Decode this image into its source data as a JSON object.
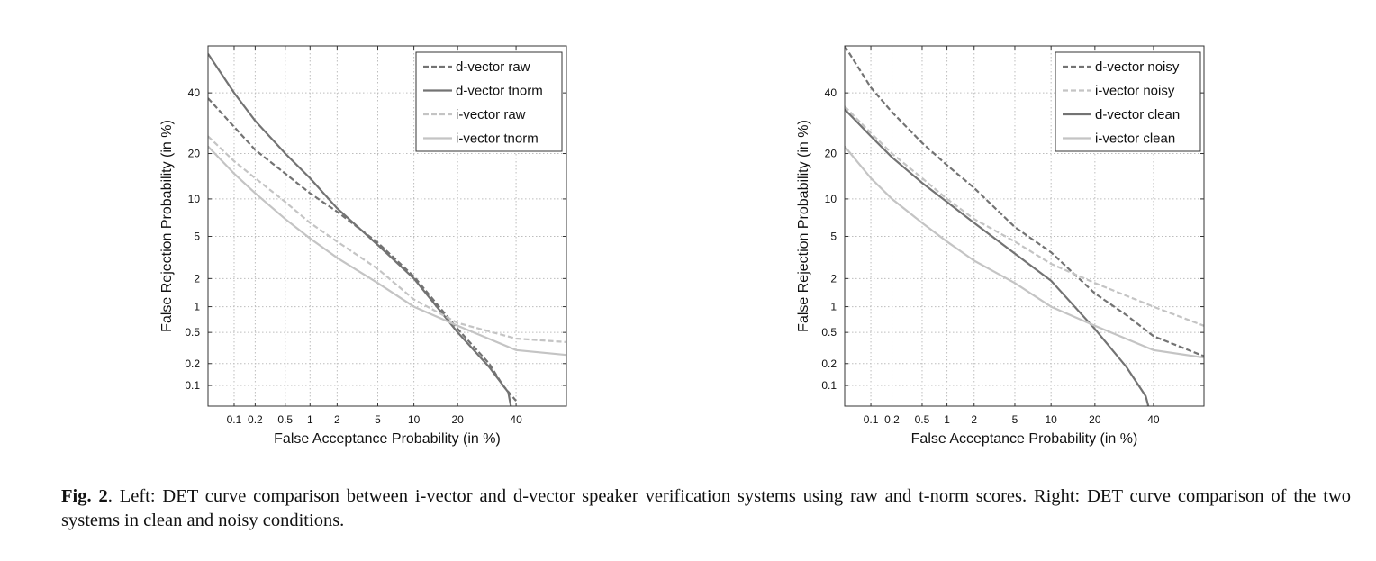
{
  "caption": {
    "label": "Fig. 2",
    "text": ". Left: DET curve comparison between i-vector and d-vector speaker verification systems using raw and t-norm scores. Right: DET curve comparison of the two systems in clean and noisy conditions."
  },
  "chart_data": [
    {
      "type": "line",
      "title": "",
      "xlabel": "False Acceptance Probability (in %)",
      "ylabel": "False Rejection Probability (in %)",
      "x_scale": "probit",
      "y_scale": "probit",
      "xlim": [
        0.04,
        60
      ],
      "ylim": [
        0.05,
        58
      ],
      "x_ticks": [
        0.1,
        0.2,
        0.5,
        1,
        2,
        5,
        10,
        20,
        40
      ],
      "y_ticks": [
        0.1,
        0.2,
        0.5,
        1,
        2,
        5,
        10,
        20,
        40
      ],
      "grid": true,
      "legend": "top-right",
      "series": [
        {
          "name": "d-vector raw",
          "color": "#737373",
          "dash": "dashed",
          "points": [
            [
              0.04,
              38
            ],
            [
              0.1,
              28
            ],
            [
              0.2,
              21
            ],
            [
              0.5,
              15
            ],
            [
              1,
              11
            ],
            [
              2,
              8
            ],
            [
              5,
              4.4
            ],
            [
              10,
              2.1
            ],
            [
              20,
              0.55
            ],
            [
              30,
              0.2
            ],
            [
              35,
              0.1
            ],
            [
              40,
              0.06
            ]
          ]
        },
        {
          "name": "d-vector tnorm",
          "color": "#737373",
          "dash": "solid",
          "points": [
            [
              0.04,
              55
            ],
            [
              0.1,
              40
            ],
            [
              0.2,
              30
            ],
            [
              0.5,
              20
            ],
            [
              1,
              14
            ],
            [
              2,
              8.5
            ],
            [
              5,
              4.2
            ],
            [
              10,
              2.0
            ],
            [
              20,
              0.5
            ],
            [
              30,
              0.18
            ],
            [
              37,
              0.08
            ],
            [
              38,
              0.05
            ]
          ]
        },
        {
          "name": "i-vector raw",
          "color": "#c4c4c4",
          "dash": "dashed",
          "points": [
            [
              0.04,
              25
            ],
            [
              0.1,
              18
            ],
            [
              0.2,
              14
            ],
            [
              0.5,
              9.5
            ],
            [
              1,
              6.5
            ],
            [
              2,
              4.5
            ],
            [
              5,
              2.5
            ],
            [
              10,
              1.2
            ],
            [
              20,
              0.65
            ],
            [
              40,
              0.42
            ],
            [
              60,
              0.38
            ]
          ]
        },
        {
          "name": "i-vector tnorm",
          "color": "#c4c4c4",
          "dash": "solid",
          "points": [
            [
              0.04,
              22
            ],
            [
              0.1,
              15
            ],
            [
              0.2,
              11
            ],
            [
              0.5,
              7
            ],
            [
              1,
              4.8
            ],
            [
              2,
              3.2
            ],
            [
              5,
              1.8
            ],
            [
              10,
              1.0
            ],
            [
              20,
              0.6
            ],
            [
              40,
              0.3
            ],
            [
              60,
              0.26
            ]
          ]
        }
      ]
    },
    {
      "type": "line",
      "title": "",
      "xlabel": "False Acceptance Probability (in %)",
      "ylabel": "False Rejection Probability (in %)",
      "x_scale": "probit",
      "y_scale": "probit",
      "xlim": [
        0.04,
        60
      ],
      "ylim": [
        0.05,
        58
      ],
      "x_ticks": [
        0.1,
        0.2,
        0.5,
        1,
        2,
        5,
        10,
        20,
        40
      ],
      "y_ticks": [
        0.1,
        0.2,
        0.5,
        1,
        2,
        5,
        10,
        20,
        40
      ],
      "grid": true,
      "legend": "top-right",
      "series": [
        {
          "name": "d-vector noisy",
          "color": "#737373",
          "dash": "dashed",
          "points": [
            [
              0.04,
              58
            ],
            [
              0.1,
              42
            ],
            [
              0.2,
              33
            ],
            [
              0.5,
              23
            ],
            [
              1,
              17
            ],
            [
              2,
              12
            ],
            [
              5,
              6
            ],
            [
              10,
              3.6
            ],
            [
              20,
              1.4
            ],
            [
              30,
              0.8
            ],
            [
              40,
              0.45
            ],
            [
              60,
              0.25
            ]
          ]
        },
        {
          "name": "i-vector noisy",
          "color": "#c4c4c4",
          "dash": "dashed",
          "points": [
            [
              0.04,
              35
            ],
            [
              0.1,
              26
            ],
            [
              0.2,
              20
            ],
            [
              0.5,
              14
            ],
            [
              1,
              10
            ],
            [
              2,
              7
            ],
            [
              5,
              4.5
            ],
            [
              10,
              2.8
            ],
            [
              20,
              1.8
            ],
            [
              40,
              1.0
            ],
            [
              60,
              0.6
            ]
          ]
        },
        {
          "name": "d-vector clean",
          "color": "#737373",
          "dash": "solid",
          "points": [
            [
              0.04,
              34
            ],
            [
              0.1,
              25
            ],
            [
              0.2,
              19
            ],
            [
              0.5,
              13
            ],
            [
              1,
              9.5
            ],
            [
              2,
              6.5
            ],
            [
              5,
              3.5
            ],
            [
              10,
              1.9
            ],
            [
              20,
              0.55
            ],
            [
              30,
              0.18
            ],
            [
              37,
              0.07
            ],
            [
              38,
              0.05
            ]
          ]
        },
        {
          "name": "i-vector clean",
          "color": "#c4c4c4",
          "dash": "solid",
          "points": [
            [
              0.04,
              22
            ],
            [
              0.1,
              14
            ],
            [
              0.2,
              10
            ],
            [
              0.5,
              6.5
            ],
            [
              1,
              4.5
            ],
            [
              2,
              3
            ],
            [
              5,
              1.8
            ],
            [
              10,
              1.0
            ],
            [
              20,
              0.6
            ],
            [
              40,
              0.3
            ],
            [
              60,
              0.24
            ]
          ]
        }
      ]
    }
  ]
}
